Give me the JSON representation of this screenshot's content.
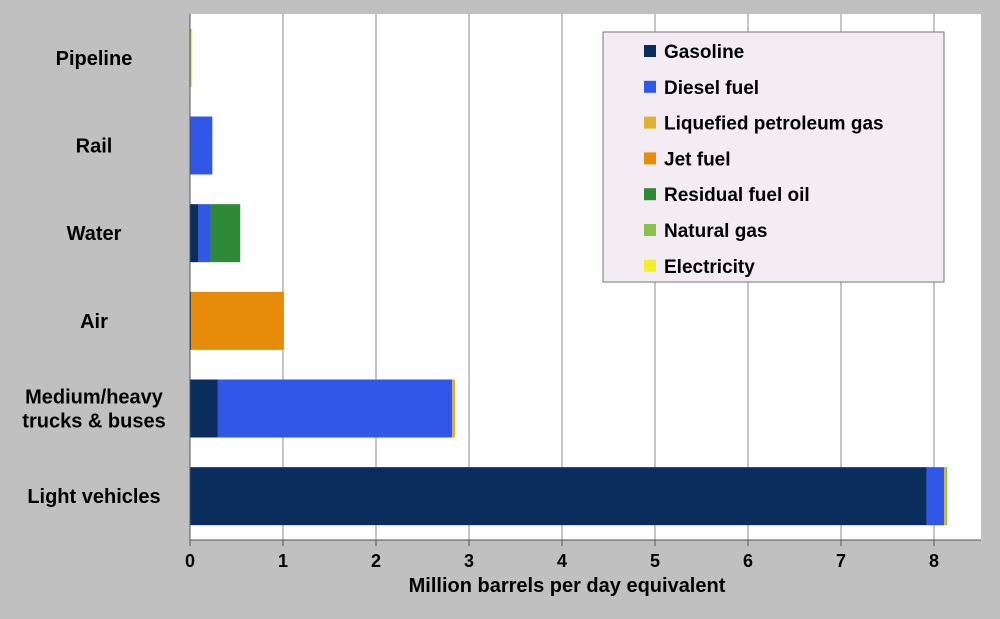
{
  "chart_data": {
    "type": "bar",
    "orientation": "horizontal",
    "stacked": true,
    "title": "",
    "xlabel": "Million barrels per day equivalent",
    "ylabel": "",
    "xlim": [
      0,
      8.5
    ],
    "x_ticks": [
      0,
      1,
      2,
      3,
      4,
      5,
      6,
      7,
      8
    ],
    "grid": true,
    "legend_position": "top-right",
    "categories": [
      {
        "lines": [
          "Pipeline"
        ]
      },
      {
        "lines": [
          "Rail"
        ]
      },
      {
        "lines": [
          "Water"
        ]
      },
      {
        "lines": [
          "Air"
        ]
      },
      {
        "lines": [
          "Medium/heavy",
          "trucks & buses"
        ]
      },
      {
        "lines": [
          "Light vehicles"
        ]
      }
    ],
    "series": [
      {
        "name": "Gasoline",
        "color": "#0b2d5e",
        "values": [
          0,
          0,
          0.09,
          0.01,
          0.3,
          7.92
        ]
      },
      {
        "name": "Diesel fuel",
        "color": "#3057e8",
        "values": [
          0,
          0.24,
          0.13,
          0,
          2.52,
          0.19
        ]
      },
      {
        "name": "Liquefied petroleum gas",
        "color": "#e0b030",
        "values": [
          0,
          0,
          0,
          0,
          0.03,
          0.02
        ]
      },
      {
        "name": "Jet fuel",
        "color": "#e68c0a",
        "values": [
          0,
          0,
          0,
          1.0,
          0,
          0
        ]
      },
      {
        "name": " Residual fuel oil",
        "color": "#2e8a35",
        "values": [
          0,
          0,
          0.32,
          0,
          0,
          0
        ]
      },
      {
        "name": "Natural gas",
        "color": "#8cc04b",
        "values": [
          0.01,
          0,
          0,
          0,
          0,
          0.01
        ]
      },
      {
        "name": "Electricity",
        "color": "#f5ef2a",
        "values": [
          0.01,
          0,
          0,
          0,
          0,
          0
        ]
      }
    ]
  },
  "colors": {
    "page_background": "#c0c0c0",
    "plot_background": "#ffffff",
    "legend_background": "#f3ecf3",
    "gridline": "#8c8c8c"
  }
}
